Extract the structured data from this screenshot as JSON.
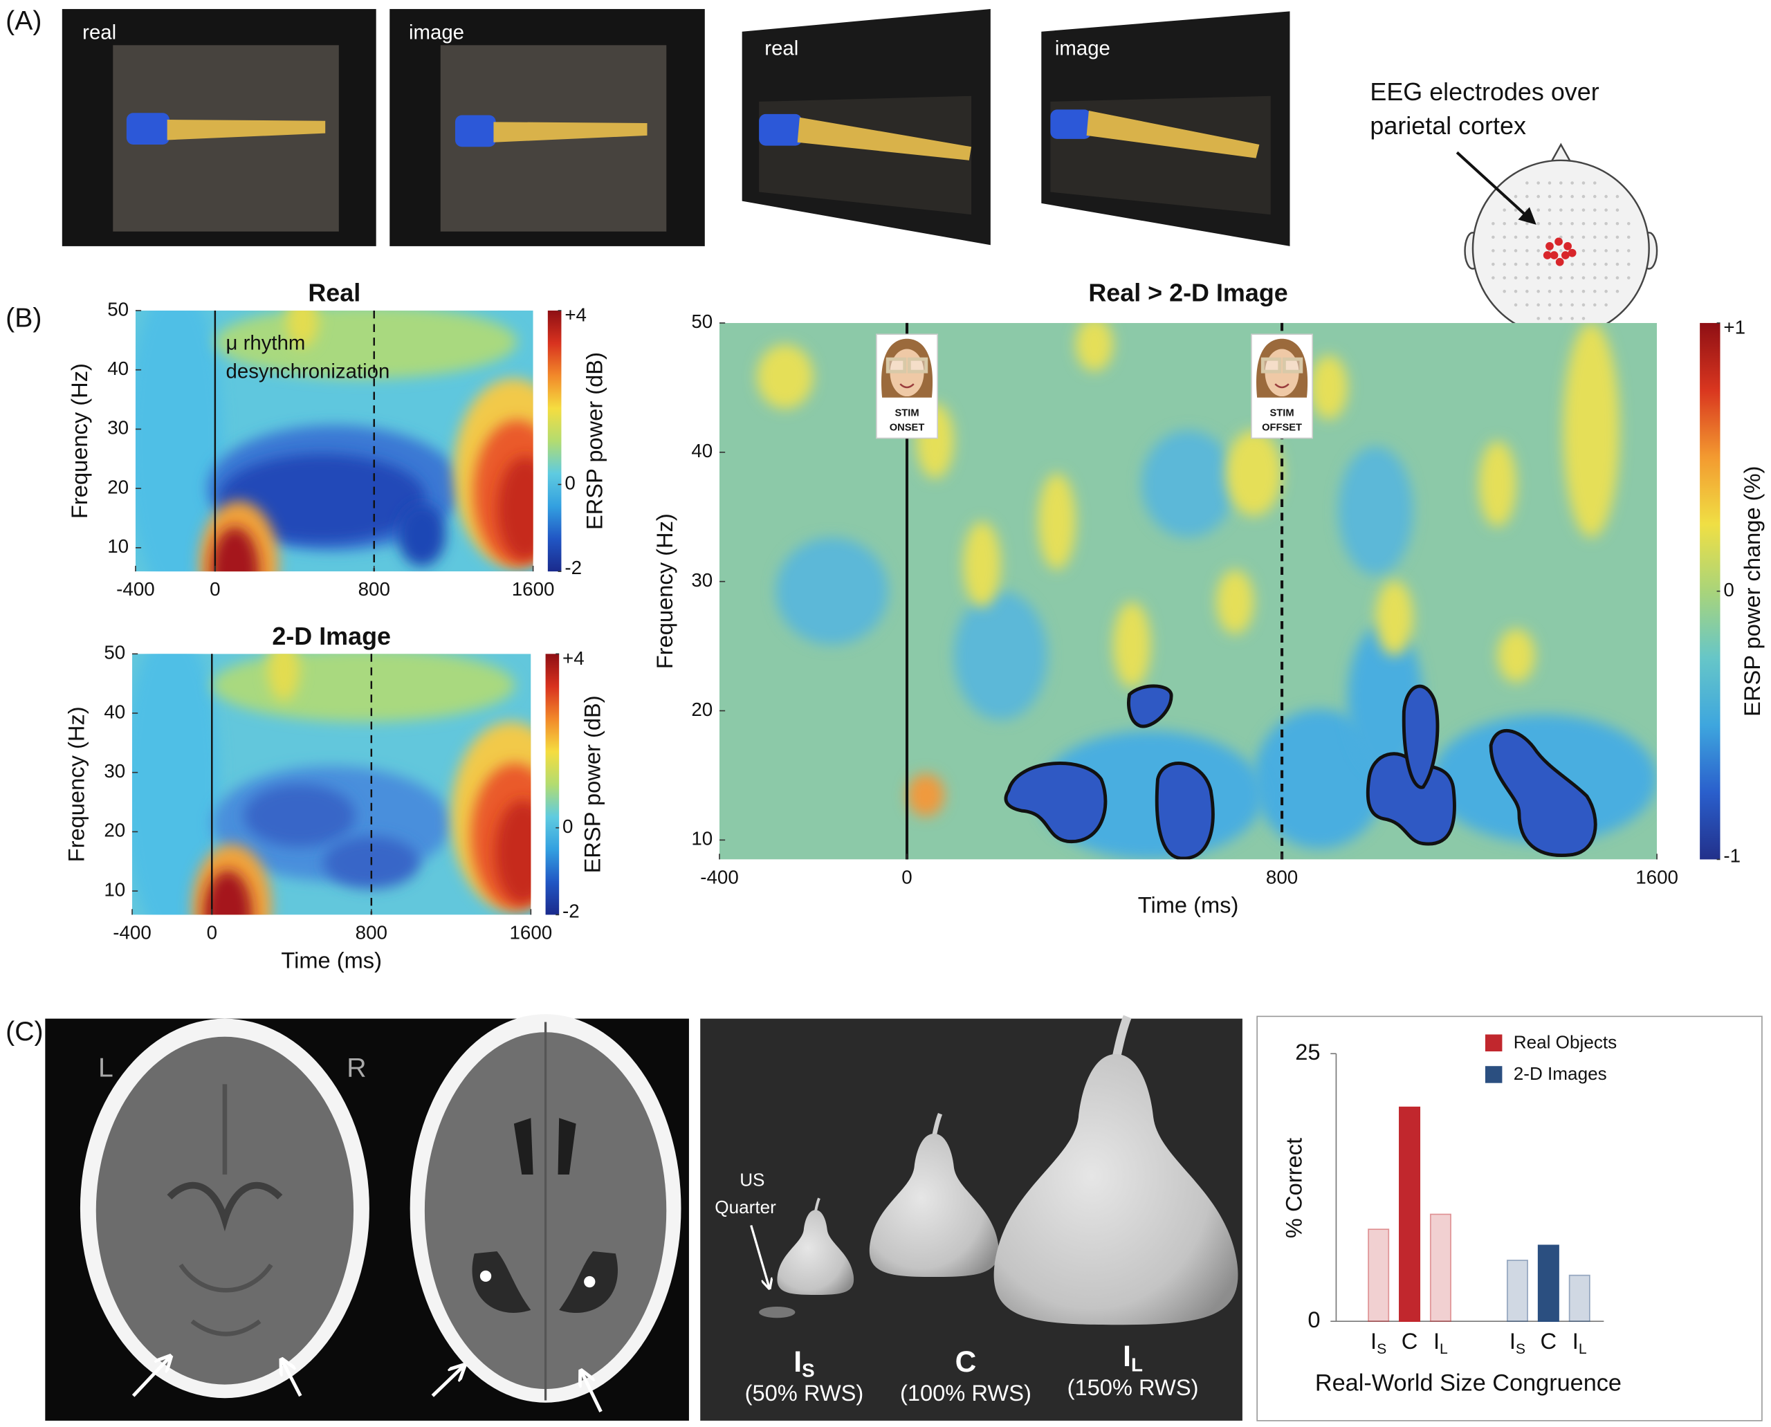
{
  "panel_a": {
    "label": "(A)",
    "photo_labels": [
      "real",
      "image",
      "real",
      "image"
    ],
    "electrode_note": [
      "EEG electrodes over",
      "parietal cortex"
    ]
  },
  "panel_b": {
    "label": "(B)",
    "maps": [
      {
        "title": "Real",
        "ylabel": "Frequency (Hz)",
        "colorbar_label": "ERSP power (dB)",
        "annotation": [
          "μ rhythm",
          "desynchronization"
        ],
        "xlim": [
          -400,
          1600
        ],
        "xticks": [
          -400,
          0,
          800,
          1600
        ],
        "ylim": [
          6,
          50
        ],
        "yticks": [
          10,
          20,
          30,
          40,
          50
        ],
        "clim": [
          -2,
          4
        ],
        "cticks": [
          {
            "value": 4,
            "label": "+4"
          },
          0,
          -2
        ],
        "colormap": [
          "#1a2a8c",
          "#2156c4",
          "#33a0e0",
          "#5fcbe0",
          "#b3dc70",
          "#f5dd40",
          "#f2892a",
          "#d8321f",
          "#8e0f14"
        ],
        "events": [
          {
            "value": 0,
            "style": "solid"
          },
          {
            "value": 800,
            "style": "dashed"
          }
        ]
      },
      {
        "title": "2-D Image",
        "ylabel": "Frequency (Hz)",
        "xlabel": "Time (ms)",
        "colorbar_label": "ERSP power (dB)",
        "xlim": [
          -400,
          1600
        ],
        "xticks": [
          -400,
          0,
          800,
          1600
        ],
        "ylim": [
          6,
          50
        ],
        "yticks": [
          10,
          20,
          30,
          40,
          50
        ],
        "clim": [
          -2,
          4
        ],
        "cticks": [
          {
            "value": 4,
            "label": "+4"
          },
          0,
          -2
        ],
        "colormap": [
          "#1a2a8c",
          "#2156c4",
          "#33a0e0",
          "#5fcbe0",
          "#b3dc70",
          "#f5dd40",
          "#f2892a",
          "#d8321f",
          "#8e0f14"
        ],
        "events": [
          {
            "value": 0,
            "style": "solid"
          },
          {
            "value": 800,
            "style": "dashed"
          }
        ]
      },
      {
        "title": "Real > 2-D Image",
        "ylabel": "Frequency (Hz)",
        "xlabel": "Time (ms)",
        "colorbar_label": "ERSP power change (%)",
        "xlim": [
          -400,
          1600
        ],
        "xticks": [
          -400,
          0,
          800,
          1600
        ],
        "ylim": [
          8.5,
          50
        ],
        "yticks": [
          10,
          20,
          30,
          40,
          50
        ],
        "clim": [
          -1,
          1
        ],
        "cticks": [
          {
            "value": 1,
            "label": "+1"
          },
          0,
          -1
        ],
        "colormap": [
          "#22308a",
          "#2a5fcc",
          "#3ea6de",
          "#66c6c8",
          "#a9d47a",
          "#f0df44",
          "#f39a30",
          "#d9361f",
          "#8e0f14"
        ],
        "events": [
          {
            "value": 0,
            "style": "solid",
            "label": [
              "STIM",
              "ONSET"
            ]
          },
          {
            "value": 800,
            "style": "dashed",
            "label": [
              "STIM",
              "OFFSET"
            ]
          }
        ]
      }
    ]
  },
  "panel_c": {
    "label": "(C)",
    "ct": {
      "side_labels": [
        "L",
        "R"
      ]
    },
    "pears": {
      "quarter_label": [
        "US",
        "Quarter"
      ],
      "sizes": [
        {
          "main": "I",
          "sub": "S",
          "caption": "(50% RWS)"
        },
        {
          "main": "C",
          "caption": "(100% RWS)"
        },
        {
          "main": "I",
          "sub": "L",
          "caption": "(150% RWS)"
        }
      ]
    },
    "chart_data": {
      "type": "bar",
      "ylabel": "% Correct",
      "xlabel": "Real-World Size Congruence",
      "categories": [
        {
          "main": "I",
          "sub": "S"
        },
        {
          "main": "C"
        },
        {
          "main": "I",
          "sub": "L"
        }
      ],
      "series": [
        {
          "name": "Real Objects",
          "color": "#c1272d",
          "values": [
            8.6,
            20,
            10
          ]
        },
        {
          "name": "2-D Images",
          "color": "#2b4f80",
          "values": [
            5.7,
            7.1,
            4.3
          ]
        }
      ],
      "ylim": [
        0,
        25
      ],
      "yticks": [
        0,
        25
      ],
      "legend": "top-right",
      "emphasis": [
        false,
        true,
        false
      ]
    }
  }
}
